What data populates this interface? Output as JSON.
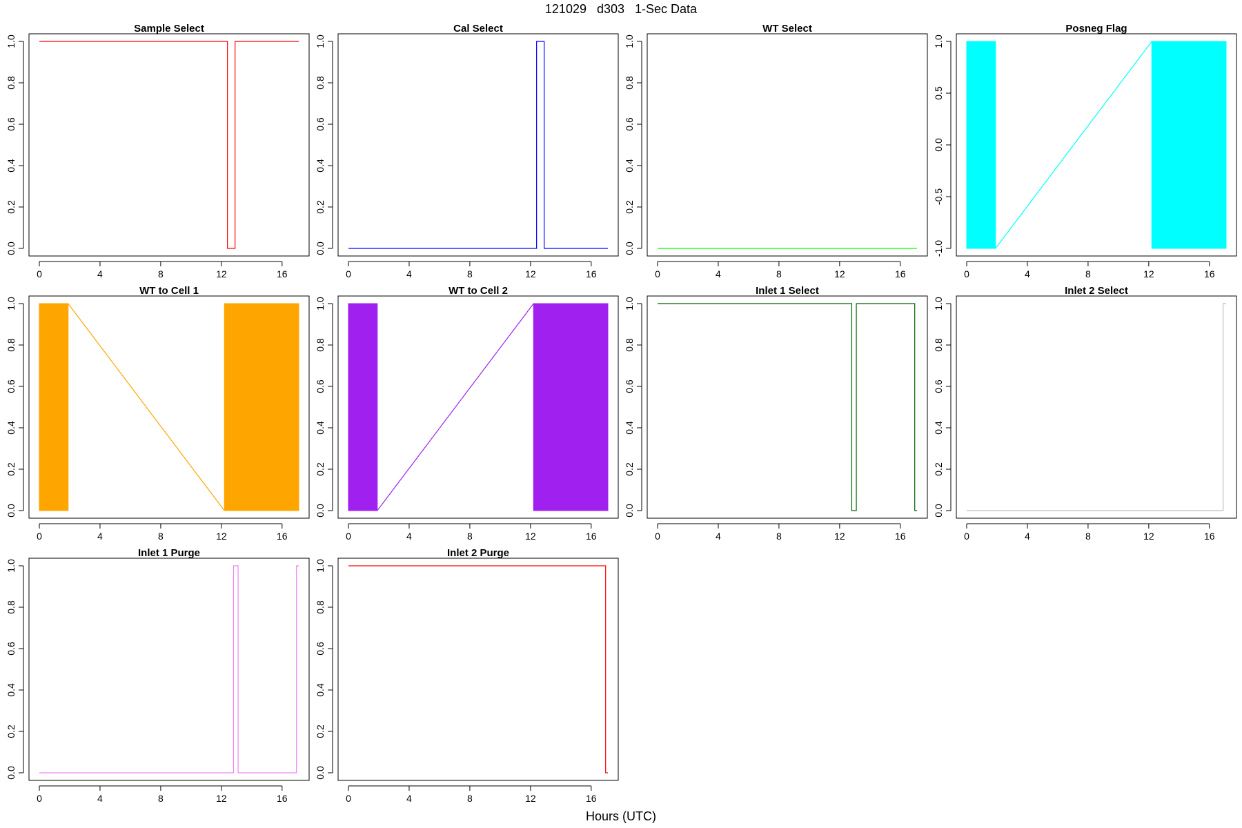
{
  "figure": {
    "title": "121029   d303   1-Sec Data",
    "xlabel": "Hours (UTC)"
  },
  "chart_data": [
    {
      "type": "line",
      "title": "Sample Select",
      "color": "#ff0000",
      "xlim": [
        0,
        16
      ],
      "ylim": [
        0,
        1
      ],
      "xticks": [
        0,
        4,
        8,
        12,
        16
      ],
      "yticks": [
        0,
        0.2,
        0.4,
        0.6,
        0.8,
        1.0
      ],
      "x": [
        0,
        12.4,
        12.4,
        12.9,
        12.9,
        17.1
      ],
      "y": [
        1,
        1,
        0,
        0,
        1,
        1
      ]
    },
    {
      "type": "line",
      "title": "Cal Select",
      "color": "#0000ff",
      "xlim": [
        0,
        16
      ],
      "ylim": [
        0,
        1
      ],
      "xticks": [
        0,
        4,
        8,
        12,
        16
      ],
      "yticks": [
        0,
        0.2,
        0.4,
        0.6,
        0.8,
        1.0
      ],
      "x": [
        0,
        12.4,
        12.4,
        12.9,
        12.9,
        17.1
      ],
      "y": [
        0,
        0,
        1,
        1,
        0,
        0
      ]
    },
    {
      "type": "line",
      "title": "WT Select",
      "color": "#00ff00",
      "xlim": [
        0,
        16
      ],
      "ylim": [
        0,
        1
      ],
      "xticks": [
        0,
        4,
        8,
        12,
        16
      ],
      "yticks": [
        0,
        0.2,
        0.4,
        0.6,
        0.8,
        1.0
      ],
      "x": [
        0,
        17.1
      ],
      "y": [
        0,
        0
      ]
    },
    {
      "type": "line",
      "title": "Posneg Flag",
      "color": "#00ffff",
      "xlim": [
        0,
        16
      ],
      "ylim": [
        -1,
        1
      ],
      "xticks": [
        0,
        4,
        8,
        12,
        16
      ],
      "yticks": [
        -1.0,
        -0.5,
        0.0,
        0.5,
        1.0
      ],
      "fill_blocks": [
        [
          0,
          1.9
        ],
        [
          12.2,
          17.1
        ]
      ],
      "x": [
        1.9,
        12.2
      ],
      "y": [
        -1,
        1
      ]
    },
    {
      "type": "line",
      "title": "WT to Cell 1",
      "color": "#ffa500",
      "xlim": [
        0,
        16
      ],
      "ylim": [
        0,
        1
      ],
      "xticks": [
        0,
        4,
        8,
        12,
        16
      ],
      "yticks": [
        0,
        0.2,
        0.4,
        0.6,
        0.8,
        1.0
      ],
      "fill_blocks": [
        [
          0,
          1.9
        ],
        [
          12.2,
          17.1
        ]
      ],
      "x": [
        1.9,
        12.2
      ],
      "y": [
        1,
        0
      ]
    },
    {
      "type": "line",
      "title": "WT to Cell 2",
      "color": "#a020f0",
      "xlim": [
        0,
        16
      ],
      "ylim": [
        0,
        1
      ],
      "xticks": [
        0,
        4,
        8,
        12,
        16
      ],
      "yticks": [
        0,
        0.2,
        0.4,
        0.6,
        0.8,
        1.0
      ],
      "fill_blocks": [
        [
          0,
          1.9
        ],
        [
          12.2,
          17.1
        ]
      ],
      "x": [
        1.9,
        12.2
      ],
      "y": [
        0,
        1
      ]
    },
    {
      "type": "line",
      "title": "Inlet 1 Select",
      "color": "#006400",
      "xlim": [
        0,
        16
      ],
      "ylim": [
        0,
        1
      ],
      "xticks": [
        0,
        4,
        8,
        12,
        16
      ],
      "yticks": [
        0,
        0.2,
        0.4,
        0.6,
        0.8,
        1.0
      ],
      "x": [
        0,
        12.8,
        12.8,
        13.1,
        13.1,
        16.95,
        16.95,
        17.1
      ],
      "y": [
        1,
        1,
        0,
        0,
        1,
        1,
        0,
        0
      ]
    },
    {
      "type": "line",
      "title": "Inlet 2 Select",
      "color": "#bebebe",
      "xlim": [
        0,
        16
      ],
      "ylim": [
        0,
        1
      ],
      "xticks": [
        0,
        4,
        8,
        12,
        16
      ],
      "yticks": [
        0,
        0.2,
        0.4,
        0.6,
        0.8,
        1.0
      ],
      "x": [
        0,
        16.9,
        16.9,
        17.1
      ],
      "y": [
        0,
        0,
        1,
        1
      ]
    },
    {
      "type": "line",
      "title": "Inlet 1 Purge",
      "color": "#ee82ee",
      "xlim": [
        0,
        16
      ],
      "ylim": [
        0,
        1
      ],
      "xticks": [
        0,
        4,
        8,
        12,
        16
      ],
      "yticks": [
        0,
        0.2,
        0.4,
        0.6,
        0.8,
        1.0
      ],
      "x": [
        0,
        12.8,
        12.8,
        13.1,
        13.1,
        16.95,
        16.95,
        17.1
      ],
      "y": [
        0,
        0,
        1,
        1,
        0,
        0,
        1,
        1
      ]
    },
    {
      "type": "line",
      "title": "Inlet 2 Purge",
      "color": "#ff0000",
      "xlim": [
        0,
        16
      ],
      "ylim": [
        0,
        1
      ],
      "xticks": [
        0,
        4,
        8,
        12,
        16
      ],
      "yticks": [
        0,
        0.2,
        0.4,
        0.6,
        0.8,
        1.0
      ],
      "x": [
        0,
        16.95,
        16.95,
        17.1
      ],
      "y": [
        1,
        1,
        0,
        0
      ]
    }
  ]
}
